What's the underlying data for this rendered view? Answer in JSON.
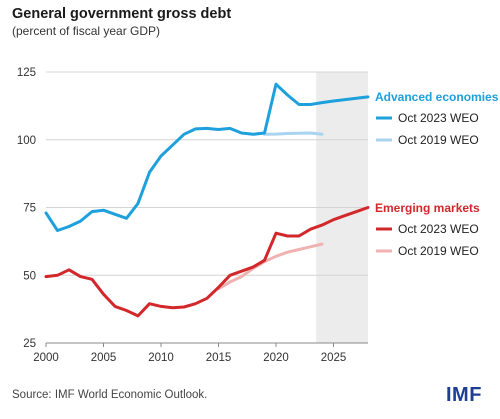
{
  "header": {
    "title": "General government gross debt",
    "subtitle": "(percent of fiscal year GDP)"
  },
  "footer": {
    "source": "Source: IMF World Economic Outlook.",
    "logo": "IMF"
  },
  "colors": {
    "advanced_2023": "#1ea0dc",
    "advanced_2019": "#a9d4f0",
    "emerging_2023": "#d2272b",
    "emerging_2019": "#efb2b0",
    "projection_shade": "#ececec",
    "advanced_label": "#1ea0dc",
    "emerging_label": "#d2272b"
  },
  "chart_data": {
    "type": "line",
    "title": "General government gross debt",
    "subtitle": "(percent of fiscal year GDP)",
    "xlim": [
      2000,
      2028
    ],
    "ylim": [
      25,
      125
    ],
    "xticks": [
      2000,
      2005,
      2010,
      2015,
      2020,
      2025
    ],
    "yticks": [
      25,
      50,
      75,
      100,
      125
    ],
    "grid": "horizontal",
    "projection_shade_start": 2023.5,
    "legend": {
      "placement": "right",
      "groups": [
        {
          "label": "Advanced economies",
          "items": [
            "Oct 2023 WEO",
            "Oct 2019 WEO"
          ]
        },
        {
          "label": "Emerging markets",
          "items": [
            "Oct 2023 WEO",
            "Oct 2019 WEO"
          ]
        }
      ]
    },
    "series": [
      {
        "name": "Oct 2023 WEO",
        "group": "Advanced economies",
        "x": [
          2000,
          2001,
          2002,
          2003,
          2004,
          2005,
          2006,
          2007,
          2008,
          2009,
          2010,
          2011,
          2012,
          2013,
          2014,
          2015,
          2016,
          2017,
          2018,
          2019,
          2020,
          2021,
          2022,
          2023,
          2024,
          2025,
          2026,
          2027,
          2028
        ],
        "values": [
          73,
          66.5,
          68,
          70,
          73.5,
          74,
          72.5,
          71,
          76.5,
          88,
          94,
          98,
          102,
          104,
          104.2,
          103.8,
          104.2,
          102.5,
          102,
          102.5,
          120.5,
          116.5,
          113,
          113,
          113.7,
          114.3,
          114.8,
          115.3,
          115.8
        ]
      },
      {
        "name": "Oct 2019 WEO",
        "group": "Advanced economies",
        "x": [
          2019,
          2020,
          2021,
          2022,
          2023,
          2024
        ],
        "values": [
          102,
          102.1,
          102.3,
          102.4,
          102.5,
          102
        ]
      },
      {
        "name": "Oct 2023 WEO",
        "group": "Emerging markets",
        "x": [
          2000,
          2001,
          2002,
          2003,
          2004,
          2005,
          2006,
          2007,
          2008,
          2009,
          2010,
          2011,
          2012,
          2013,
          2014,
          2015,
          2016,
          2017,
          2018,
          2019,
          2020,
          2021,
          2022,
          2023,
          2024,
          2025,
          2026,
          2027,
          2028
        ],
        "values": [
          49.5,
          50,
          52,
          49.5,
          48.5,
          43,
          38.5,
          37,
          35,
          39.5,
          38.5,
          38,
          38.3,
          39.5,
          41.5,
          45.5,
          50,
          51.5,
          53,
          55.5,
          65.5,
          64.5,
          64.5,
          67,
          68.5,
          70.5,
          72,
          73.5,
          75
        ]
      },
      {
        "name": "Oct 2019 WEO",
        "group": "Emerging markets",
        "x": [
          2015,
          2016,
          2017,
          2018,
          2019,
          2020,
          2021,
          2022,
          2023,
          2024
        ],
        "values": [
          45,
          47.5,
          49.5,
          52.5,
          55,
          57,
          58.5,
          59.5,
          60.5,
          61.5
        ]
      }
    ]
  }
}
